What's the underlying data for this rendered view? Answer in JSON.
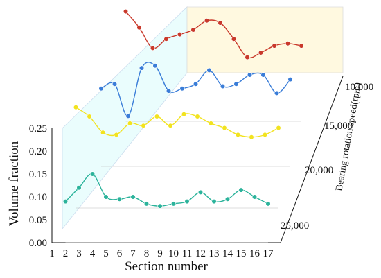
{
  "chart_data": {
    "type": "line",
    "variant": "3d-waterfall",
    "xlabel": "Section number",
    "ylabel": "Volume fraction",
    "zlabel": "Bearing rotation speed(rpm)",
    "x": [
      1,
      2,
      3,
      4,
      5,
      6,
      7,
      8,
      9,
      10,
      11,
      12,
      13,
      14,
      15,
      16,
      17
    ],
    "x_ticks": [
      "1",
      "2",
      "3",
      "4",
      "5",
      "6",
      "7",
      "8",
      "9",
      "10",
      "11",
      "12",
      "13",
      "14",
      "15",
      "16",
      "17"
    ],
    "ylim": [
      0,
      0.25
    ],
    "y_ticks": [
      "0.00",
      "0.05",
      "0.10",
      "0.15",
      "0.20",
      "0.25"
    ],
    "z_ticks": [
      "10,000",
      "15,000",
      "20,000",
      "25,000"
    ],
    "grid": false,
    "series": [
      {
        "name": "25,000",
        "color": "#2bb39b",
        "x": [
          2,
          3,
          4,
          5,
          6,
          7,
          8,
          9,
          10,
          11,
          12,
          13,
          14,
          15,
          16,
          17
        ],
        "values": [
          0.09,
          0.12,
          0.15,
          0.1,
          0.095,
          0.1,
          0.085,
          0.08,
          0.085,
          0.09,
          0.11,
          0.09,
          0.095,
          0.115,
          0.1,
          0.085
        ]
      },
      {
        "name": "20,000",
        "color": "#f2e31f",
        "x": [
          2,
          3,
          4,
          5,
          6,
          7,
          8,
          9,
          10,
          11,
          12,
          13,
          14,
          15,
          16,
          17
        ],
        "values": [
          0.22,
          0.2,
          0.165,
          0.16,
          0.185,
          0.18,
          0.2,
          0.18,
          0.205,
          0.2,
          0.185,
          0.175,
          0.16,
          0.155,
          0.16,
          0.175
        ]
      },
      {
        "name": "15,000",
        "color": "#3a7dd8",
        "x": [
          3,
          4,
          5,
          6,
          7,
          8,
          9,
          10,
          11,
          12,
          13,
          14,
          15,
          16,
          17
        ],
        "values": [
          0.17,
          0.18,
          0.11,
          0.215,
          0.22,
          0.165,
          0.17,
          0.18,
          0.21,
          0.175,
          0.18,
          0.2,
          0.2,
          0.16,
          0.19
        ]
      },
      {
        "name": "10,000",
        "color": "#c9392b",
        "x": [
          4,
          5,
          6,
          7,
          8,
          9,
          10,
          11,
          12,
          13,
          14,
          15,
          16,
          17
        ],
        "values": [
          0.24,
          0.205,
          0.16,
          0.18,
          0.19,
          0.2,
          0.22,
          0.215,
          0.18,
          0.14,
          0.15,
          0.165,
          0.17,
          0.165
        ]
      }
    ]
  }
}
